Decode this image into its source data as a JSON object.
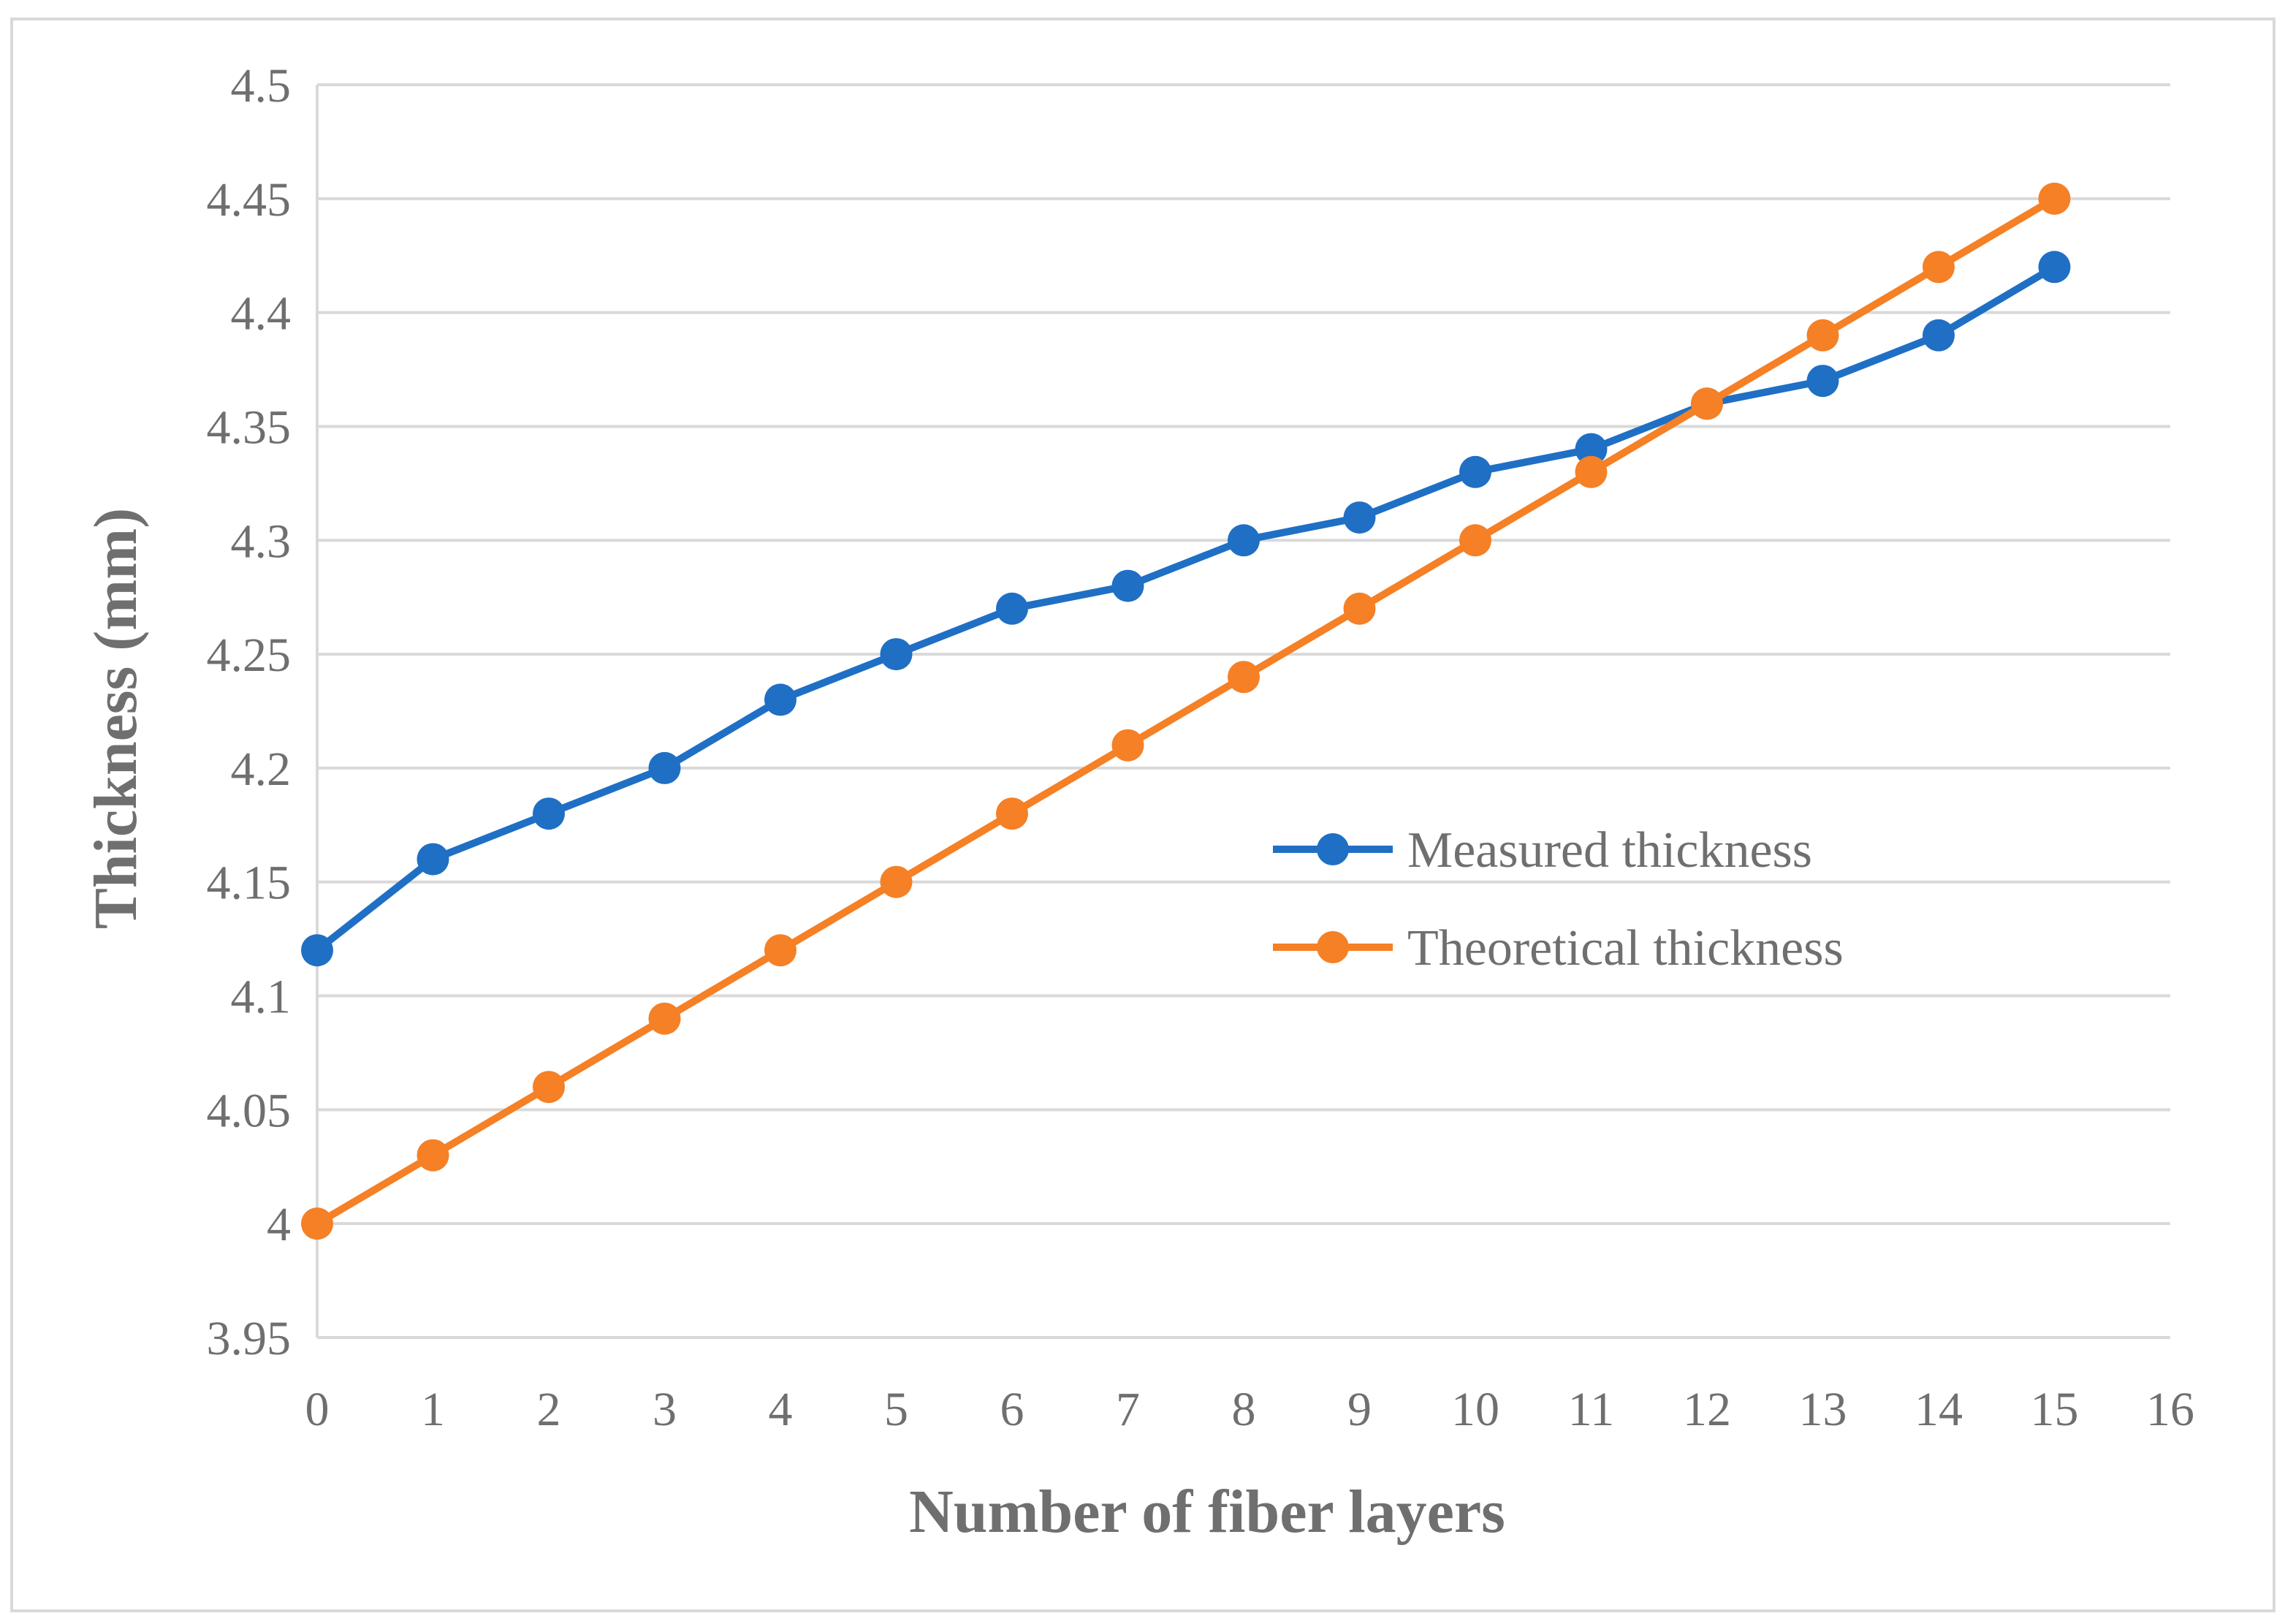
{
  "chart_data": {
    "type": "line",
    "title": "",
    "xlabel": "Number of fiber layers",
    "ylabel": "Thickness (mm)",
    "xlim": [
      0,
      16
    ],
    "ylim": [
      3.95,
      4.5
    ],
    "x_ticks": [
      "0",
      "1",
      "2",
      "3",
      "4",
      "5",
      "6",
      "7",
      "8",
      "9",
      "10",
      "11",
      "12",
      "13",
      "14",
      "15",
      "16"
    ],
    "y_ticks": [
      "3.95",
      "4",
      "4.05",
      "4.1",
      "4.15",
      "4.2",
      "4.25",
      "4.3",
      "4.35",
      "4.4",
      "4.45",
      "4.5"
    ],
    "grid": true,
    "legend_position": "right-middle",
    "x": [
      0,
      1,
      2,
      3,
      4,
      5,
      6,
      7,
      8,
      9,
      10,
      11,
      12,
      13,
      14,
      15
    ],
    "series": [
      {
        "name": "Measured thickness",
        "color": "#1f6fc5",
        "values": [
          4.12,
          4.16,
          4.18,
          4.2,
          4.23,
          4.25,
          4.27,
          4.28,
          4.3,
          4.31,
          4.33,
          4.34,
          4.36,
          4.37,
          4.39,
          4.42
        ]
      },
      {
        "name": "Theoretical thickness",
        "color": "#f58025",
        "values": [
          4.0,
          4.03,
          4.06,
          4.09,
          4.12,
          4.15,
          4.18,
          4.21,
          4.24,
          4.27,
          4.3,
          4.33,
          4.36,
          4.39,
          4.42,
          4.45
        ]
      }
    ]
  }
}
